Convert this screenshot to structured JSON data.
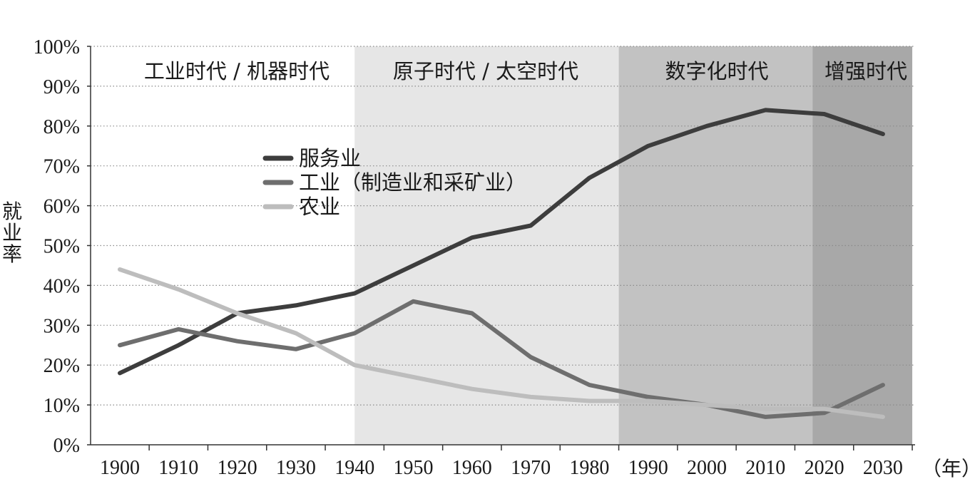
{
  "chart_data": {
    "type": "line",
    "title": "",
    "xlabel": "（年）",
    "ylabel": "就业率",
    "x": [
      1900,
      1910,
      1920,
      1930,
      1940,
      1950,
      1960,
      1970,
      1980,
      1990,
      2000,
      2010,
      2020,
      2030
    ],
    "x_ticks": [
      "1900",
      "1910",
      "1920",
      "1930",
      "1940",
      "1950",
      "1960",
      "1970",
      "1980",
      "1990",
      "2000",
      "2010",
      "2020",
      "2030"
    ],
    "y_ticks": [
      "0%",
      "10%",
      "20%",
      "30%",
      "40%",
      "50%",
      "60%",
      "70%",
      "80%",
      "90%",
      "100%"
    ],
    "ylim": [
      0,
      100
    ],
    "xlim": [
      1895,
      2036
    ],
    "grid": "horizontal-dotted",
    "legend_placement": "upper-middle",
    "eras": [
      {
        "label": "工业时代 / 机器时代",
        "from": 1895,
        "to": 1940,
        "color": "#ffffff"
      },
      {
        "label": "原子时代 / 太空时代",
        "from": 1940,
        "to": 1985,
        "color": "#e6e6e6"
      },
      {
        "label": "数字化时代",
        "from": 1985,
        "to": 2018,
        "color": "#c2c2c2"
      },
      {
        "label": "增强时代",
        "from": 2018,
        "to": 2035,
        "color": "#a8a8a8"
      }
    ],
    "series": [
      {
        "name": "服务业",
        "color": "#3d3d3d",
        "x": [
          1900,
          1910,
          1920,
          1930,
          1940,
          1950,
          1960,
          1970,
          1980,
          1990,
          2000,
          2010,
          2020,
          2030
        ],
        "values": [
          18,
          25,
          33,
          35,
          38,
          45,
          52,
          55,
          67,
          75,
          80,
          84,
          83,
          78
        ]
      },
      {
        "name": "工业（制造业和采矿业）",
        "color": "#6e6e6e",
        "x": [
          1900,
          1910,
          1920,
          1930,
          1940,
          1950,
          1960,
          1970,
          1980,
          1990,
          2000,
          2010,
          2020,
          2030
        ],
        "values": [
          25,
          29,
          26,
          24,
          28,
          36,
          33,
          22,
          15,
          12,
          10,
          7,
          8,
          15
        ]
      },
      {
        "name": "农业",
        "color": "#bdbdbd",
        "x": [
          1900,
          1910,
          1920,
          1930,
          1940,
          1950,
          1960,
          1970,
          1980,
          1990,
          2000,
          2010,
          2020,
          2030
        ],
        "values": [
          44,
          39,
          33,
          28,
          20,
          17,
          14,
          12,
          11,
          11,
          10,
          9,
          9,
          7
        ]
      }
    ]
  }
}
